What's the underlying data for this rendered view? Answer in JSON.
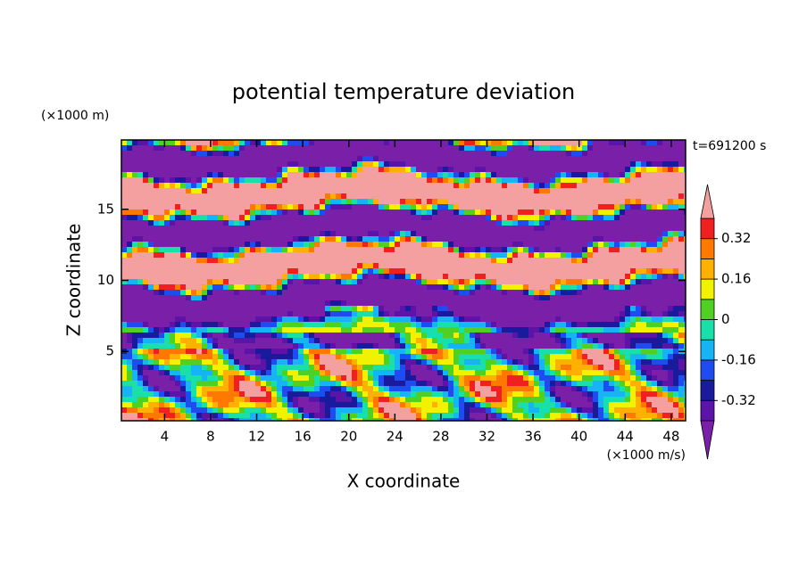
{
  "chart_data": {
    "type": "contour",
    "title": "potential temperature deviation",
    "x_label": "X coordinate",
    "y_label": "Z coordinate",
    "x_unit": "(×1000 m/s)",
    "y_unit": "(×1000 m)",
    "annotation": "t=691200 s",
    "xlim": [
      0.25,
      49.25
    ],
    "xticks": [
      4,
      8,
      12,
      16,
      20,
      24,
      28,
      32,
      36,
      40,
      44,
      48
    ],
    "ylim": [
      0.125,
      19.875
    ],
    "yticks": [
      5,
      10,
      15
    ],
    "colorbar": {
      "levels": [
        -0.4,
        -0.32,
        -0.24,
        -0.16,
        -0.08,
        0,
        0.08,
        0.16,
        0.24,
        0.32,
        0.4
      ],
      "ticks": [
        -0.32,
        -0.16,
        0,
        0.16,
        0.32
      ],
      "colors": [
        "#7a1fa8",
        "#5c14a8",
        "#1a1a9c",
        "#1e4cf0",
        "#16b4f5",
        "#18e0a8",
        "#50d020",
        "#f2f200",
        "#ffb000",
        "#ff7800",
        "#f02020",
        "#f4a0a0"
      ]
    }
  }
}
